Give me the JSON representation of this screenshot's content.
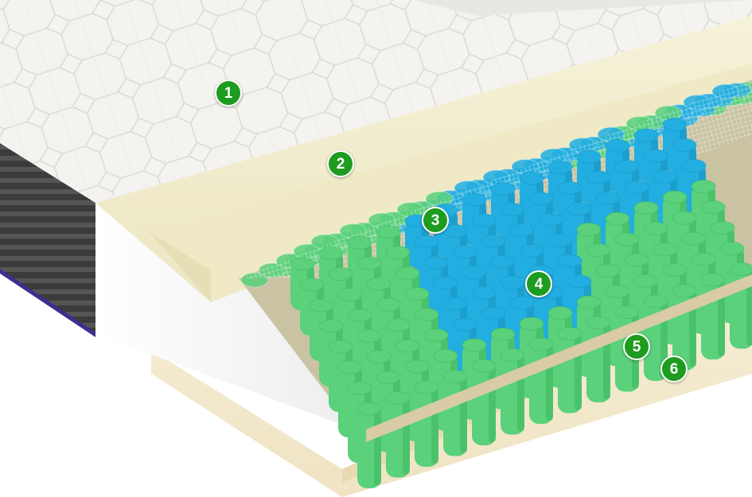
{
  "image": {
    "subject": "mattress-cross-section",
    "colors": {
      "marker_fill": "#1d9c1f",
      "marker_text": "#ffffff",
      "quilted_cover": "#f4f3f0",
      "comfort_foam": "#f3efcf",
      "border_foam": "#ffffff",
      "spring_green": "#5ad17a",
      "spring_blue": "#22aee0",
      "base_foam": "#f4ead0",
      "side_panel": "#3a3a3a",
      "piping": "#3b2f8f"
    }
  },
  "markers": [
    {
      "label": "1"
    },
    {
      "label": "2"
    },
    {
      "label": "3"
    },
    {
      "label": "4"
    },
    {
      "label": "5"
    },
    {
      "label": "6"
    }
  ]
}
